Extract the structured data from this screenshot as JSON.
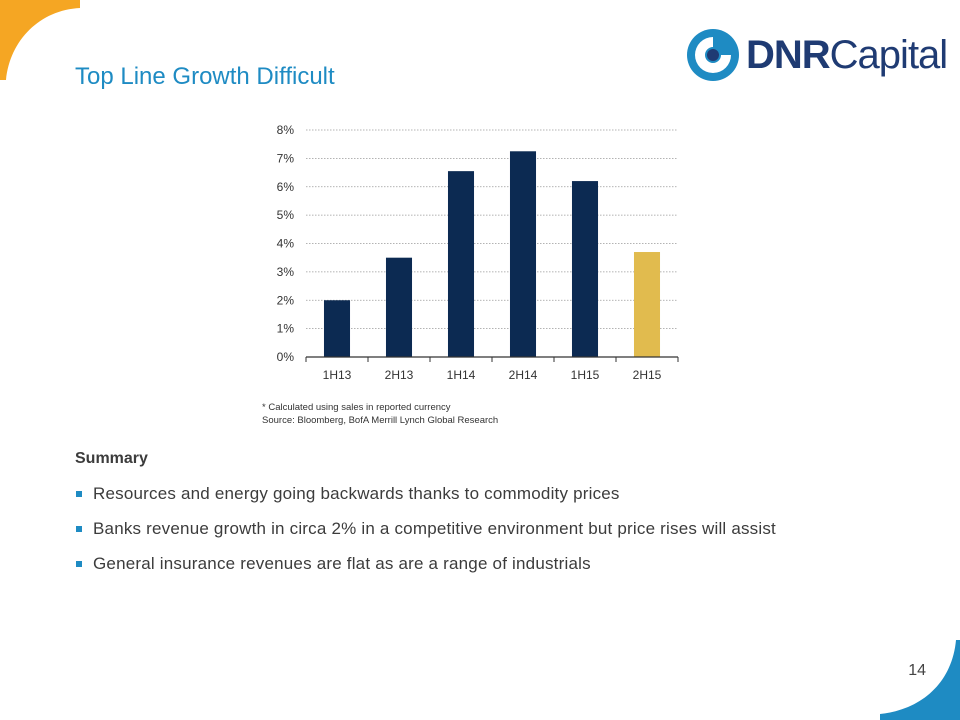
{
  "slide": {
    "title": "Top Line Growth Difficult",
    "page_number": "14"
  },
  "logo": {
    "text_bold": "DNR",
    "text_regular": "Capital",
    "colors": {
      "primary": "#1f3b73",
      "accent": "#1e8bc3"
    }
  },
  "chart_data": {
    "type": "bar",
    "title": "",
    "xlabel": "",
    "ylabel": "",
    "categories": [
      "1H13",
      "2H13",
      "1H14",
      "2H14",
      "1H15",
      "2H15"
    ],
    "values": [
      2.0,
      3.5,
      6.55,
      7.25,
      6.2,
      3.7
    ],
    "bar_colors": [
      "#0c2a52",
      "#0c2a52",
      "#0c2a52",
      "#0c2a52",
      "#0c2a52",
      "#e1bb4e"
    ],
    "ylim": [
      0,
      8
    ],
    "yticks": [
      "0%",
      "1%",
      "2%",
      "3%",
      "4%",
      "5%",
      "6%",
      "7%",
      "8%"
    ],
    "grid": "horizontal dotted",
    "footnote": "* Calculated using sales in reported currency",
    "source": "Source: Bloomberg, BofA Merrill Lynch Global Research"
  },
  "summary": {
    "heading": "Summary",
    "bullets": [
      "Resources and energy going backwards thanks to commodity prices",
      "Banks revenue growth in circa 2% in a competitive environment but price rises will assist",
      "General insurance revenues are flat as are a range of industrials"
    ]
  },
  "theme": {
    "accent_blue": "#1e8bc3",
    "corner_orange": "#f5a623",
    "corner_blue": "#1e8bc3"
  }
}
